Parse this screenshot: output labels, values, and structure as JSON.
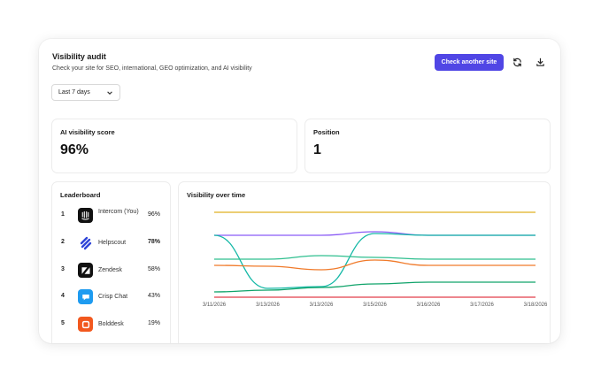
{
  "header": {
    "title": "Visibility audit",
    "subtitle": "Check your site for SEO, international, GEO optimization, and AI visibility",
    "primary_button": "Check another site",
    "refresh_icon": "refresh-icon",
    "download_icon": "download-icon"
  },
  "filter": {
    "selected": "Last 7 days",
    "icon": "chevron-down-icon"
  },
  "metrics": {
    "ai_visibility": {
      "label": "AI visibility score",
      "value": "96%"
    },
    "position": {
      "label": "Position",
      "value": "1"
    }
  },
  "leaderboard": {
    "title": "Leaderboard",
    "items": [
      {
        "rank": "1",
        "name": "Intercom (You)",
        "pct": "96%",
        "logo": "intercom-logo",
        "color": "#111111"
      },
      {
        "rank": "2",
        "name": "Helpscout",
        "pct": "78%",
        "logo": "helpscout-logo",
        "color": "#2f45d8",
        "bold": true
      },
      {
        "rank": "3",
        "name": "Zendesk",
        "pct": "58%",
        "logo": "zendesk-logo",
        "color": "#111111"
      },
      {
        "rank": "4",
        "name": "Crisp Chat",
        "pct": "43%",
        "logo": "crisp-logo",
        "color": "#1e9bf0"
      },
      {
        "rank": "5",
        "name": "Bolddesk",
        "pct": "19%",
        "logo": "bolddesk-logo",
        "color": "#f2581e"
      }
    ]
  },
  "chart_data": {
    "type": "line",
    "title": "Visibility over time",
    "categories": [
      "3/11/2026",
      "3/13/2026",
      "3/13/2026",
      "3/15/2026",
      "3/16/2026",
      "3/17/2026",
      "3/18/2026"
    ],
    "ylim": [
      0,
      100
    ],
    "grid": false,
    "series": [
      {
        "color": "#e0b020",
        "values": [
          96,
          96,
          96,
          96,
          96,
          96,
          96
        ]
      },
      {
        "color": "#8b5cf6",
        "values": [
          70,
          70,
          70,
          74,
          70,
          70,
          70
        ]
      },
      {
        "color": "#14b8a6",
        "values": [
          70,
          10,
          12,
          72,
          70,
          70,
          70
        ]
      },
      {
        "color": "#2fbf8f",
        "values": [
          43,
          43,
          47,
          45,
          43,
          43,
          43
        ]
      },
      {
        "color": "#f07a2a",
        "values": [
          36,
          35,
          31,
          42,
          36,
          36,
          36
        ]
      },
      {
        "color": "#10a36a",
        "values": [
          6,
          8,
          11,
          15,
          17,
          17,
          17
        ]
      },
      {
        "color": "#e23d4a",
        "values": [
          0,
          0,
          0,
          0,
          0,
          0,
          0
        ]
      }
    ]
  }
}
